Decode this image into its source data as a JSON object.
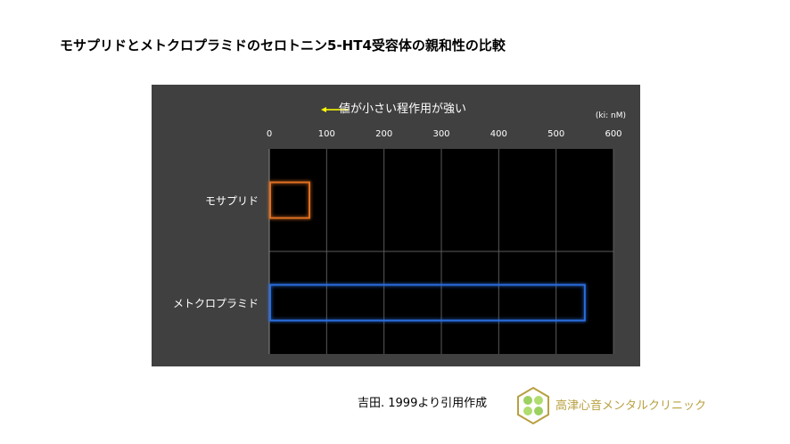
{
  "title": "モサプリドとメトクロプラミドのセロトニン5-HT4受容体の親和性の比較",
  "chart_data": {
    "type": "bar",
    "orientation": "horizontal",
    "title": "",
    "annotation": "値が小さい程作用が強い",
    "unit_label": "(ki: nM)",
    "categories": [
      "モサプリド",
      "メトクロプラミド"
    ],
    "values": [
      70,
      550
    ],
    "xlim": [
      0,
      600
    ],
    "xticks": [
      0,
      100,
      200,
      300,
      400,
      500,
      600
    ],
    "xtick_labels": [
      "0",
      "100",
      "200",
      "300",
      "400",
      "500",
      "600"
    ],
    "grid": true,
    "bar_colors": [
      "#e07020",
      "#2a6ee0"
    ],
    "bar_style": "outline-glow",
    "annotation_arrow_color": "#ffff00"
  },
  "citation": "吉田. 1999より引用作成",
  "clinic_name": "高津心音メンタルクリニック"
}
